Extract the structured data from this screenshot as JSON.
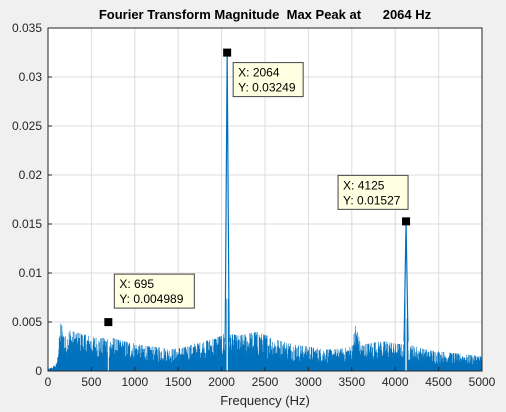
{
  "chart_data": {
    "type": "line",
    "title": "Fourier Transform Magnitude  Max Peak at      2064 Hz",
    "xlabel": "Frequency (Hz)",
    "ylabel": "",
    "xlim": [
      0,
      5000
    ],
    "ylim": [
      0,
      0.035
    ],
    "x_ticks": [
      0,
      500,
      1000,
      1500,
      2000,
      2500,
      3000,
      3500,
      4000,
      4500,
      5000
    ],
    "y_ticks": [
      0,
      0.005,
      0.01,
      0.015,
      0.02,
      0.025,
      0.03,
      0.035
    ],
    "x_tick_labels": [
      "0",
      "500",
      "1000",
      "1500",
      "2000",
      "2500",
      "3000",
      "3500",
      "4000",
      "4500",
      "5000"
    ],
    "y_tick_labels": [
      "0",
      "0.005",
      "0.01",
      "0.015",
      "0.02",
      "0.025",
      "0.03",
      "0.035"
    ],
    "grid": true,
    "line_color": "#0072bd",
    "series": [
      {
        "x": [
          0,
          50,
          100,
          130,
          150,
          200,
          250,
          300,
          400,
          500,
          600,
          700,
          800,
          900,
          1000,
          1100,
          1200,
          1300,
          1400,
          1500,
          1600,
          1700,
          1800,
          1900,
          2000,
          2050,
          2064,
          2080,
          2100,
          2200,
          2300,
          2400,
          2500,
          2600,
          2700,
          2800,
          2900,
          3000,
          3100,
          3200,
          3300,
          3400,
          3500,
          3550,
          3600,
          3700,
          3800,
          3900,
          4000,
          4100,
          4125,
          4150,
          4200,
          4300,
          4400,
          4500,
          4600,
          4700,
          4800,
          4900,
          5000
        ],
        "y": [
          0.0002,
          0.0004,
          0.0008,
          0.0035,
          0.005,
          0.0035,
          0.0042,
          0.004,
          0.0038,
          0.0035,
          0.0033,
          0.0035,
          0.0032,
          0.003,
          0.0028,
          0.0026,
          0.0025,
          0.0024,
          0.0022,
          0.0023,
          0.0025,
          0.0028,
          0.003,
          0.0033,
          0.0036,
          0.004,
          0.03249,
          0.0045,
          0.0038,
          0.0036,
          0.0038,
          0.004,
          0.0037,
          0.0033,
          0.003,
          0.0028,
          0.0026,
          0.0025,
          0.0023,
          0.0022,
          0.0022,
          0.0023,
          0.0025,
          0.005,
          0.0027,
          0.0028,
          0.003,
          0.003,
          0.0028,
          0.0027,
          0.01527,
          0.0028,
          0.0026,
          0.0023,
          0.0021,
          0.002,
          0.0019,
          0.0018,
          0.0017,
          0.0016,
          0.0015
        ]
      }
    ],
    "data_tips": [
      {
        "x": 2064,
        "y": 0.03249,
        "x_text": "X: 2064",
        "y_text": "Y: 0.03249",
        "placement": "right-below"
      },
      {
        "x": 4125,
        "y": 0.01527,
        "x_text": "X: 4125",
        "y_text": "Y: 0.01527",
        "placement": "left-above"
      },
      {
        "x": 695,
        "y": 0.004989,
        "x_text": "X: 695",
        "y_text": "Y: 0.004989",
        "placement": "right-above"
      }
    ]
  }
}
